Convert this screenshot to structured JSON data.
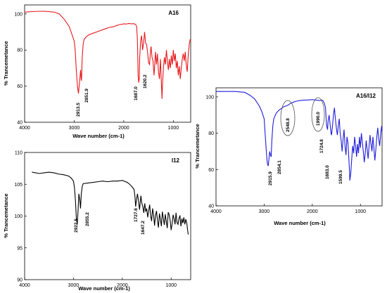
{
  "chart_data": [
    {
      "type": "line",
      "title": "A16",
      "xlabel": "Wave number (cm-1)",
      "ylabel": "% Trancemetance",
      "xlim": [
        4000,
        650
      ],
      "ylim": [
        40,
        105
      ],
      "xticks": [
        "4000",
        "3000",
        "2000",
        "1000"
      ],
      "yticks": [
        "40",
        "60",
        "80",
        "100"
      ],
      "grid": false,
      "color": "#e8191c",
      "series": [
        {
          "x": [
            4000,
            3800,
            3600,
            3400,
            3300,
            3200,
            3100,
            3050,
            3000,
            2980,
            2960,
            2940,
            2925,
            2913.5,
            2900,
            2880,
            2870,
            2860,
            2851.9,
            2840,
            2820,
            2800,
            2750,
            2700,
            2600,
            2500,
            2400,
            2300,
            2200,
            2150,
            2100,
            2050,
            2000,
            1950,
            1900,
            1850,
            1800,
            1760,
            1740,
            1725,
            1710,
            1700,
            1687,
            1680,
            1660,
            1640,
            1620.2,
            1600,
            1580,
            1560,
            1540,
            1520,
            1500,
            1480,
            1465,
            1450,
            1430,
            1410,
            1390,
            1375,
            1360,
            1340,
            1320,
            1300,
            1280,
            1260,
            1240,
            1228,
            1220,
            1200,
            1180,
            1160,
            1140,
            1120,
            1100,
            1080,
            1060,
            1040,
            1020,
            1000,
            980,
            960,
            940,
            920,
            900,
            880,
            860,
            840,
            820,
            800,
            780,
            760,
            740,
            720,
            700,
            680,
            660,
            650
          ],
          "y": [
            101,
            101.4,
            101.5,
            101,
            100,
            97,
            93,
            89,
            85,
            80,
            70,
            62,
            58,
            56,
            60,
            66,
            69,
            64,
            63,
            75,
            83,
            86,
            87.5,
            88.5,
            89.5,
            90.5,
            91.5,
            92.5,
            93,
            93.5,
            94,
            94.2,
            94.5,
            94.4,
            94.7,
            94.5,
            94.6,
            94.2,
            93,
            86,
            66,
            62,
            64,
            75,
            85,
            88,
            80,
            84,
            90,
            84,
            83,
            79,
            73,
            72,
            78,
            82,
            76,
            74,
            66,
            72,
            79,
            72,
            78,
            68,
            64,
            75,
            61,
            53,
            60,
            70,
            76,
            72,
            80,
            74,
            69,
            75,
            70,
            77,
            72,
            80,
            74,
            78,
            70,
            74,
            66,
            71,
            64,
            70,
            75,
            78,
            74,
            79,
            72,
            68,
            77,
            83,
            86,
            85
          ]
        }
      ],
      "peaks": [
        "2913.5",
        "2851.9",
        "1687.0",
        "1620.2"
      ]
    },
    {
      "type": "line",
      "title": "I12",
      "xlabel": "Wave number (cm-1)",
      "ylabel": "% Trancemetance",
      "xlim": [
        4000,
        600
      ],
      "ylim": [
        90,
        110
      ],
      "xticks": [
        "4000",
        "3000",
        "2000",
        "1000"
      ],
      "yticks": [
        "90",
        "95",
        "100",
        "105",
        "110"
      ],
      "grid": false,
      "color": "#000000",
      "series": [
        {
          "x": [
            3850,
            3700,
            3600,
            3500,
            3400,
            3300,
            3200,
            3100,
            3050,
            3000,
            2980,
            2960,
            2940,
            2922.5,
            2905,
            2890,
            2870,
            2855.2,
            2840,
            2820,
            2800,
            2700,
            2600,
            2500,
            2400,
            2300,
            2200,
            2100,
            2000,
            1900,
            1850,
            1800,
            1760,
            1740,
            1727.6,
            1710,
            1690,
            1670,
            1647.2,
            1620,
            1600,
            1580,
            1560,
            1540,
            1520,
            1500,
            1480,
            1460,
            1440,
            1420,
            1400,
            1380,
            1360,
            1340,
            1320,
            1300,
            1280,
            1260,
            1240,
            1220,
            1200,
            1180,
            1160,
            1140,
            1120,
            1100,
            1080,
            1060,
            1040,
            1020,
            1000,
            980,
            960,
            940,
            920,
            900,
            880,
            860,
            840,
            820,
            800,
            780,
            760,
            740,
            720,
            700,
            680,
            660,
            650
          ],
          "y": [
            106.9,
            106.7,
            106.8,
            106.9,
            106.8,
            106.6,
            106.5,
            106.3,
            106,
            105.5,
            104.5,
            102.5,
            99.5,
            98.7,
            101,
            103.5,
            102.5,
            101.2,
            103.5,
            104.7,
            105.1,
            105.2,
            105.3,
            105.4,
            105.5,
            105.4,
            105.5,
            105.5,
            105.6,
            105.3,
            105,
            104.6,
            104.2,
            103,
            101.5,
            102.5,
            103.5,
            102.5,
            101,
            103.2,
            102,
            101.5,
            100.5,
            102,
            100.7,
            101.2,
            99.8,
            100.8,
            101.8,
            100.1,
            99.2,
            101.2,
            100.2,
            98.5,
            100.1,
            100.8,
            99.3,
            98.2,
            100.4,
            99.5,
            98.4,
            100.7,
            99.6,
            98.6,
            100.3,
            99.2,
            98.1,
            100.6,
            100.2,
            99.3,
            97.8,
            98.8,
            100.2,
            99.6,
            98.7,
            100.5,
            99,
            98.7,
            99.6,
            100.1,
            98.4,
            99.6,
            98.9,
            99.8,
            98.7,
            99.5,
            98.9,
            97.6,
            97.1
          ]
        }
      ],
      "peaks": [
        "2922.5",
        "2855.2",
        "1727.6",
        "1647.2"
      ]
    },
    {
      "type": "line",
      "title": "A16/I12",
      "xlabel": "Wave number (cm-1)",
      "ylabel": "% Trancemetance",
      "xlim": [
        4000,
        550
      ],
      "ylim": [
        40,
        105
      ],
      "xticks": [
        "4000",
        "3000",
        "2000",
        "1000"
      ],
      "yticks": [
        "40",
        "60",
        "80",
        "100"
      ],
      "grid": false,
      "color": "#1f1ddb",
      "series": [
        {
          "x": [
            4000,
            3800,
            3600,
            3400,
            3300,
            3200,
            3100,
            3050,
            3000,
            2980,
            2960,
            2940,
            2930,
            2915.9,
            2900,
            2885,
            2870,
            2854.1,
            2840,
            2820,
            2800,
            2750,
            2700,
            2650,
            2600,
            2548.8,
            2500,
            2450,
            2400,
            2350,
            2300,
            2250,
            2200,
            2100,
            2000,
            1990,
            1950,
            1900,
            1850,
            1800,
            1780,
            1760,
            1745,
            1724.8,
            1710,
            1700,
            1683,
            1670,
            1650,
            1630,
            1610,
            1599.5,
            1580,
            1560,
            1540,
            1520,
            1500,
            1480,
            1460,
            1440,
            1420,
            1400,
            1380,
            1360,
            1340,
            1320,
            1300,
            1280,
            1260,
            1240,
            1228,
            1220,
            1200,
            1180,
            1160,
            1140,
            1120,
            1100,
            1080,
            1060,
            1040,
            1020,
            1000,
            980,
            960,
            940,
            920,
            900,
            880,
            860,
            840,
            820,
            800,
            780,
            760,
            740,
            720,
            700,
            680,
            660,
            640,
            620,
            600,
            580,
            560,
            550
          ],
          "y": [
            103,
            103,
            103,
            102.5,
            101,
            99,
            95,
            92,
            88,
            80,
            72,
            65,
            63,
            62,
            66,
            70,
            68,
            67,
            76,
            84,
            88,
            91,
            92.5,
            93.5,
            94.5,
            95,
            95.5,
            96.5,
            97,
            97.5,
            97.8,
            98,
            98.2,
            98.3,
            98.5,
            98.5,
            98.3,
            98.2,
            98,
            98.2,
            98,
            97,
            96,
            94,
            87,
            84,
            82,
            87,
            90,
            85,
            80,
            79,
            84,
            90,
            94,
            88,
            83,
            79,
            84,
            88,
            80,
            76,
            70,
            77,
            82,
            73,
            68,
            78,
            75,
            66,
            60,
            54,
            58,
            66,
            73,
            69,
            78,
            73,
            67,
            74,
            69,
            78,
            72,
            80,
            75,
            70,
            64,
            69,
            76,
            71,
            66,
            73,
            79,
            74,
            70,
            78,
            72,
            65,
            71,
            78,
            83,
            77,
            73,
            79,
            84,
            81
          ]
        }
      ],
      "peaks": [
        "2915.9",
        "2854.1",
        "2548.8",
        "1990.0",
        "1724.8",
        "1683.0",
        "1599.5"
      ]
    }
  ]
}
